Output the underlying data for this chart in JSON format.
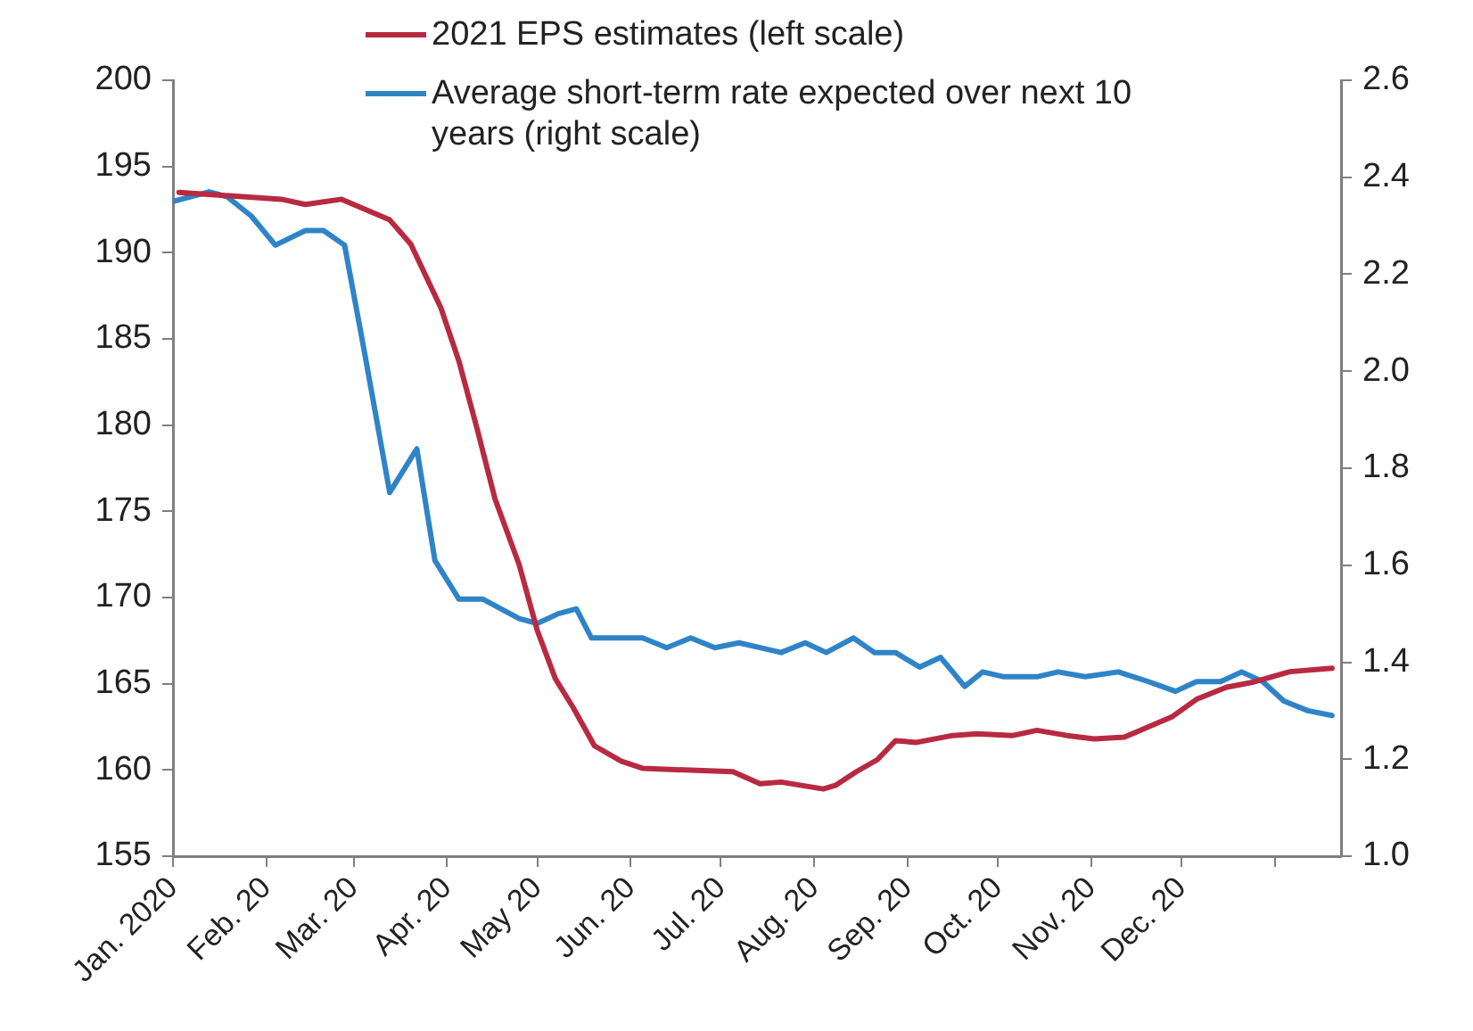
{
  "chart_data": {
    "type": "line",
    "xlim": [
      "2020-01-01",
      "2021-01-23"
    ],
    "xticks": [
      {
        "value": "2020-01-01",
        "label": "Jan. 2020"
      },
      {
        "value": "2020-02-01",
        "label": "Feb. 20"
      },
      {
        "value": "2020-03-01",
        "label": "Mar. 20"
      },
      {
        "value": "2020-04-01",
        "label": "Apr. 20"
      },
      {
        "value": "2020-05-01",
        "label": "May 20"
      },
      {
        "value": "2020-06-01",
        "label": "Jun. 20"
      },
      {
        "value": "2020-07-01",
        "label": "Jul. 20"
      },
      {
        "value": "2020-08-01",
        "label": "Aug. 20"
      },
      {
        "value": "2020-09-01",
        "label": "Sep. 20"
      },
      {
        "value": "2020-10-01",
        "label": "Oct. 20"
      },
      {
        "value": "2020-11-01",
        "label": "Nov. 20"
      },
      {
        "value": "2020-12-01",
        "label": "Dec. 20"
      },
      {
        "value": "2021-01-01",
        "label": null
      }
    ],
    "ylim": [
      155,
      200
    ],
    "yticks": [
      155,
      160,
      165,
      170,
      175,
      180,
      185,
      190,
      195,
      200
    ],
    "y2lim": [
      1.0,
      2.6
    ],
    "y2ticks": [
      {
        "value": 1.0,
        "label": "1.0"
      },
      1.2,
      1.4,
      1.6,
      1.8,
      {
        "value": 2.0,
        "label": "2.0"
      },
      2.2,
      2.4,
      2.6
    ],
    "grid": false,
    "legend": "top",
    "marker": "none",
    "line_style": "solid",
    "series": [
      {
        "name": "2021 EPS estimates (left scale)",
        "color": "#b82a41",
        "axis": "y",
        "x": [
          "2020-01-03",
          "2020-02-06",
          "2020-02-14",
          "2020-02-26",
          "2020-03-13",
          "2020-03-20",
          "2020-03-30",
          "2020-04-05",
          "2020-04-11",
          "2020-04-17",
          "2020-04-25",
          "2020-05-01",
          "2020-05-07",
          "2020-05-13",
          "2020-05-20",
          "2020-05-29",
          "2020-06-05",
          "2020-06-19",
          "2020-07-05",
          "2020-07-14",
          "2020-07-21",
          "2020-08-04",
          "2020-08-08",
          "2020-08-15",
          "2020-08-22",
          "2020-08-28",
          "2020-09-04",
          "2020-09-16",
          "2020-09-24",
          "2020-10-06",
          "2020-10-14",
          "2020-10-24",
          "2020-11-02",
          "2020-11-12",
          "2020-11-20",
          "2020-11-28",
          "2020-12-06",
          "2020-12-16",
          "2020-12-25",
          "2021-01-06",
          "2021-01-20"
        ],
        "values": [
          193.5,
          193.1,
          192.8,
          193.1,
          191.9,
          190.5,
          186.8,
          183.7,
          179.8,
          175.7,
          171.9,
          168.1,
          165.3,
          163.6,
          161.4,
          160.5,
          160.1,
          160.0,
          159.9,
          159.2,
          159.3,
          158.9,
          159.1,
          159.9,
          160.6,
          161.7,
          161.6,
          162.0,
          162.1,
          162.0,
          162.3,
          162.0,
          161.8,
          161.9,
          162.5,
          163.1,
          164.1,
          164.8,
          165.1,
          165.7,
          165.9
        ]
      },
      {
        "name": "Average short-term rate expected over next 10 years (right scale)",
        "color": "#2f84c8",
        "axis": "y2",
        "x": [
          "2020-01-01",
          "2020-01-13",
          "2020-01-19",
          "2020-01-27",
          "2020-02-04",
          "2020-02-14",
          "2020-02-20",
          "2020-02-27",
          "2020-03-04",
          "2020-03-13",
          "2020-03-22",
          "2020-03-28",
          "2020-04-05",
          "2020-04-13",
          "2020-04-25",
          "2020-05-01",
          "2020-05-08",
          "2020-05-14",
          "2020-05-19",
          "2020-05-29",
          "2020-06-05",
          "2020-06-13",
          "2020-06-21",
          "2020-06-29",
          "2020-07-07",
          "2020-07-14",
          "2020-07-21",
          "2020-07-29",
          "2020-08-05",
          "2020-08-14",
          "2020-08-21",
          "2020-08-28",
          "2020-09-05",
          "2020-09-12",
          "2020-09-20",
          "2020-09-26",
          "2020-10-03",
          "2020-10-14",
          "2020-10-21",
          "2020-10-30",
          "2020-11-10",
          "2020-11-20",
          "2020-11-29",
          "2020-12-06",
          "2020-12-14",
          "2020-12-21",
          "2020-12-28",
          "2021-01-04",
          "2021-01-12",
          "2021-01-20"
        ],
        "values": [
          2.35,
          2.37,
          2.36,
          2.32,
          2.26,
          2.29,
          2.29,
          2.26,
          2.06,
          1.75,
          1.84,
          1.61,
          1.53,
          1.53,
          1.49,
          1.48,
          1.5,
          1.51,
          1.45,
          1.45,
          1.45,
          1.43,
          1.45,
          1.43,
          1.44,
          1.43,
          1.42,
          1.44,
          1.42,
          1.45,
          1.42,
          1.42,
          1.39,
          1.41,
          1.35,
          1.38,
          1.37,
          1.37,
          1.38,
          1.37,
          1.38,
          1.36,
          1.34,
          1.36,
          1.36,
          1.38,
          1.36,
          1.32,
          1.3,
          1.29
        ]
      }
    ]
  }
}
